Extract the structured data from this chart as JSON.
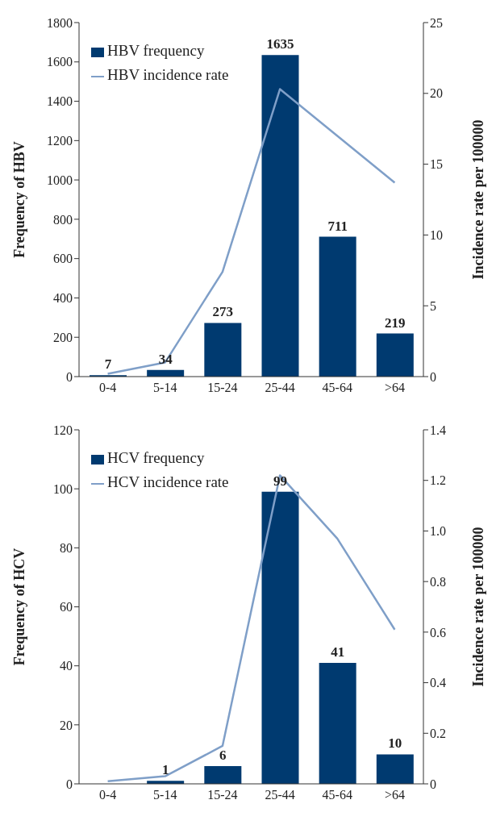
{
  "chart_data": [
    {
      "type": "bar",
      "categories": [
        "0-4",
        "5-14",
        "15-24",
        "25-44",
        "45-64",
        ">64"
      ],
      "ylabel": "Frequency of HBV",
      "y2label": "Incidence rate per 100000",
      "ylim": [
        0,
        1800
      ],
      "yticks": [
        0,
        200,
        400,
        600,
        800,
        1000,
        1200,
        1400,
        1600,
        1800
      ],
      "y2lim": [
        0,
        25
      ],
      "y2ticks": [
        0,
        5,
        10,
        15,
        20,
        25
      ],
      "legend": "top left",
      "series": [
        {
          "name": "HBV frequency",
          "color": "#003a70",
          "values": [
            7,
            34,
            273,
            1635,
            711,
            219
          ],
          "value_labels": [
            "7",
            "34",
            "273",
            "1635",
            "711",
            "219"
          ]
        },
        {
          "name": "HBV incidence rate",
          "type": "line",
          "axis": "y2",
          "color": "#7f9fc8",
          "marker": "none",
          "values": [
            0.2,
            1.0,
            7.4,
            20.3,
            17.0,
            13.7
          ]
        }
      ]
    },
    {
      "type": "bar",
      "categories": [
        "0-4",
        "5-14",
        "15-24",
        "25-44",
        "45-64",
        ">64"
      ],
      "ylabel": "Frequency of HCV",
      "y2label": "Incidence rate per 100000",
      "ylim": [
        0,
        120
      ],
      "yticks": [
        0,
        20,
        40,
        60,
        80,
        100,
        120
      ],
      "y2lim": [
        0,
        1.4
      ],
      "y2ticks": [
        0,
        {
          "value": 0.2,
          "label": "0.2"
        },
        {
          "value": 0.4,
          "label": "0.4"
        },
        {
          "value": 0.6,
          "label": "0.6"
        },
        {
          "value": 0.8,
          "label": "0.8"
        },
        {
          "value": 1,
          "label": "1.0"
        },
        {
          "value": 1.2,
          "label": "1.2"
        },
        {
          "value": 1.4,
          "label": "1.4"
        }
      ],
      "legend": "top left",
      "series": [
        {
          "name": "HCV frequency",
          "color": "#003a70",
          "values": [
            0,
            1,
            6,
            99,
            41,
            10
          ],
          "value_labels": [
            "0",
            "1",
            "6",
            "99",
            "41",
            "10"
          ]
        },
        {
          "name": "HCV incidence rate",
          "type": "line",
          "axis": "y2",
          "color": "#7f9fc8",
          "marker": "none",
          "values": [
            0.01,
            0.03,
            0.15,
            1.22,
            0.97,
            0.61
          ]
        }
      ]
    }
  ]
}
